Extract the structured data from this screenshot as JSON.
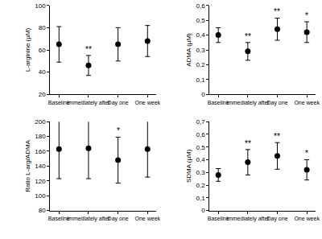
{
  "chart_data": [
    {
      "type": "scatter",
      "y_label": "L-arginine (µM)",
      "categories": [
        "Baseline",
        "Immediately after",
        "Day one",
        "One week"
      ],
      "values": [
        65,
        46,
        65,
        68
      ],
      "errors": [
        16,
        9,
        15,
        14
      ],
      "annotations": [
        null,
        "**",
        null,
        null
      ],
      "color": "#000000",
      "marker": "circle",
      "grid": false,
      "ylim": [
        20,
        100
      ],
      "yticks": [
        20,
        40,
        60,
        80,
        100
      ]
    },
    {
      "type": "scatter",
      "y_label": "ADMA (µM)",
      "categories": [
        "Baseline",
        "Immediately after",
        "Day one",
        "One week"
      ],
      "values": [
        0.4,
        0.29,
        0.44,
        0.42
      ],
      "errors": [
        0.05,
        0.06,
        0.075,
        0.07
      ],
      "annotations": [
        null,
        "**",
        "**",
        "*"
      ],
      "color": "#000000",
      "marker": "circle",
      "grid": false,
      "ylim": [
        0,
        0.6
      ],
      "yticks": [
        0,
        {
          "value": 0.1,
          "label": "0,1"
        },
        {
          "value": 0.2,
          "label": "0,2"
        },
        {
          "value": 0.3,
          "label": "0,3"
        },
        {
          "value": 0.4,
          "label": "0,4"
        },
        {
          "value": 0.5,
          "label": "0,5"
        },
        {
          "value": 0.6,
          "label": "0,6"
        }
      ]
    },
    {
      "type": "scatter",
      "y_label": "Ratio L-arg/ADMA",
      "categories": [
        "Baseline",
        "Immediately after",
        "Day one",
        "One week"
      ],
      "values": [
        163,
        164,
        148,
        163
      ],
      "errors": [
        40,
        41,
        31,
        38
      ],
      "annotations": [
        null,
        null,
        "*",
        null
      ],
      "color": "#000000",
      "marker": "circle",
      "grid": false,
      "ylim": [
        80,
        200
      ],
      "yticks": [
        80,
        100,
        120,
        140,
        160,
        180,
        200
      ]
    },
    {
      "type": "scatter",
      "y_label": "SDMA (µM)",
      "categories": [
        "Baseline",
        "Immediately after",
        "Day one",
        "One week"
      ],
      "values": [
        0.28,
        0.38,
        0.43,
        0.32
      ],
      "errors": [
        0.05,
        0.1,
        0.105,
        0.08
      ],
      "annotations": [
        null,
        "**",
        "**",
        "*"
      ],
      "color": "#000000",
      "marker": "circle",
      "grid": false,
      "ylim": [
        0,
        0.7
      ],
      "yticks": [
        0,
        {
          "value": 0.1,
          "label": "0,1"
        },
        {
          "value": 0.2,
          "label": "0,2"
        },
        {
          "value": 0.3,
          "label": "0,3"
        },
        {
          "value": 0.4,
          "label": "0,4"
        },
        {
          "value": 0.5,
          "label": "0,5"
        },
        {
          "value": 0.6,
          "label": "0,6"
        },
        {
          "value": 0.7,
          "label": "0,7"
        }
      ]
    }
  ]
}
